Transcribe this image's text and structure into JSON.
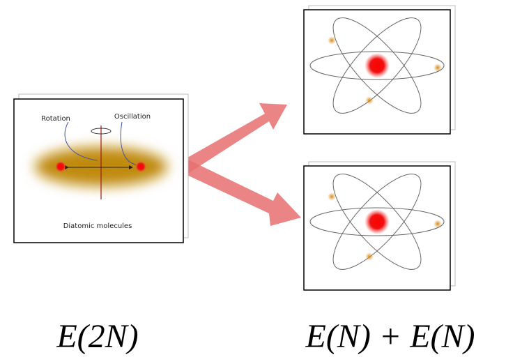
{
  "molecule": {
    "rotation_label": "Rotation",
    "oscillation_label": "Oscillation",
    "caption": "Diatomic molecules"
  },
  "equation": {
    "left": "E(2N)",
    "right": "E(N) + E(N)"
  }
}
